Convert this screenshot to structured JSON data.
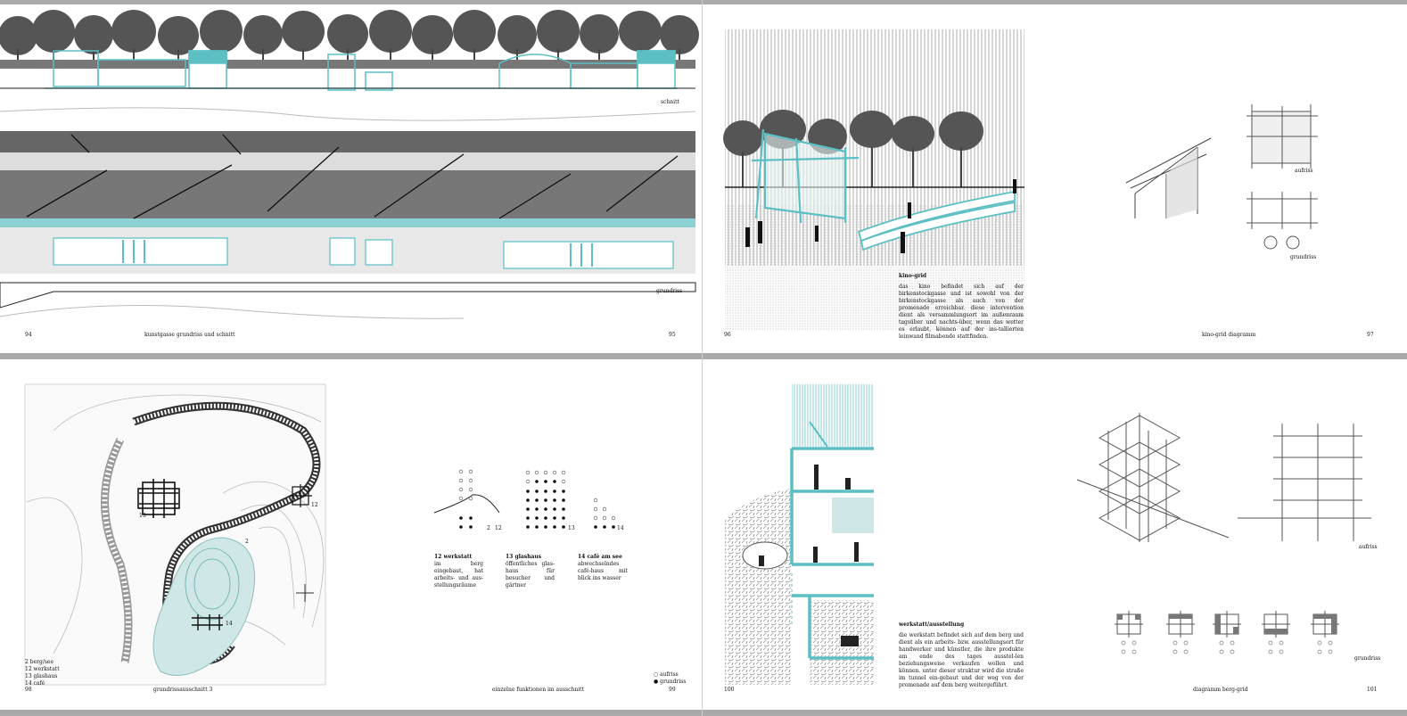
{
  "spread_top_left": {
    "label_section": "schnitt",
    "label_plan": "grundriss",
    "page_left": "94",
    "caption": "kunstgasse grundriss und schnitt",
    "page_right": "95"
  },
  "spread_top_right": {
    "page_left": "96",
    "heading": "kino-grid",
    "body": "das kino befindet sich auf der birkenstockgasse und ist sowohl von der birkenstockgasse als auch von der promenade erreichbar. diese intervention dient als versammlungsort im außenraum tagsüber und nachts-über, wenn das wetter es erlaubt, können auf der ins-tallierten leinwand filmabende stattfinden.",
    "label_elevation": "aufriss",
    "label_plan": "grundriss",
    "caption": "kino-grid diagramm",
    "page_right": "97"
  },
  "spread_bottom_left": {
    "page_left": "98",
    "legend": [
      "2 berg/see",
      "12 werkstatt",
      "13 glashaus",
      "14 café"
    ],
    "map_numbers": [
      "13",
      "12",
      "2",
      "14"
    ],
    "caption_left": "grundrissausschnitt 3",
    "functions": [
      {
        "title": "12 werkstatt",
        "text": "im berg eingebaut, hat arbeits- und aus-stellungsräume",
        "num": "12",
        "num2": "2"
      },
      {
        "title": "13 glashaus",
        "text": "öffentliches glas-haus für besucher und gärtner",
        "num": "13"
      },
      {
        "title": "14 café am see",
        "text": "abwechselndes café-haus mit blick ins wasser",
        "num": "14"
      }
    ],
    "caption_right": "einzelne funktionen im ausschnitt",
    "key": [
      "○ aufriss",
      "● grundriss"
    ],
    "page_right": "99"
  },
  "spread_bottom_right": {
    "page_left": "100",
    "heading": "werkstatt/ausstellung",
    "body": "die werkstatt befindet sich auf dem berg und dient als ein arbeits- bzw. ausstellungsort für handwerker und künstler, die ihre produkte am ende des tages ausstel-len beziehungsweise verkaufen wollen und können. unter dieser struktur wird die straße im tunnel ein-gebaut und der weg von der promenade auf dem berg weitergeführt.",
    "label_elevation": "aufriss",
    "label_plan": "grundriss",
    "caption": "diagramm berg-grid",
    "page_right": "101"
  },
  "colors": {
    "accent": "#5bbfc3",
    "accent_light": "#cfe7e6",
    "ink": "#222222",
    "grey": "#8a8a8a",
    "divider": "#aaaaaa"
  }
}
